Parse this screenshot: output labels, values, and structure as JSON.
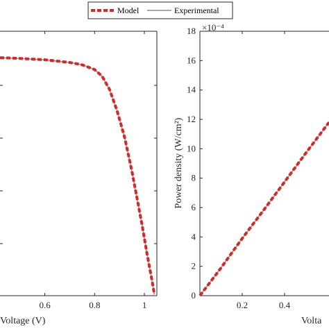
{
  "legend": {
    "model_label": "Model",
    "experimental_label": "Experimental",
    "model_color": "#d62728",
    "experimental_color": "#8c8c8c",
    "placement": "top-center"
  },
  "chart_data": [
    {
      "type": "line",
      "xlabel": "Voltage (V)",
      "ylabel": "",
      "xticks": [
        "0.6",
        "0.8",
        "1"
      ],
      "xlim": [
        0.42,
        1.05
      ],
      "ylim": [
        0,
        1
      ],
      "grid": false,
      "series": [
        {
          "name": "Model",
          "x": [
            0.42,
            0.5,
            0.6,
            0.7,
            0.75,
            0.8,
            0.83,
            0.86,
            0.89,
            0.92,
            0.95,
            0.97,
            0.99,
            1.01,
            1.03,
            1.04
          ],
          "y": [
            0.9,
            0.897,
            0.892,
            0.882,
            0.873,
            0.855,
            0.83,
            0.78,
            0.7,
            0.6,
            0.47,
            0.37,
            0.27,
            0.16,
            0.06,
            0.005
          ]
        },
        {
          "name": "Experimental",
          "x": [
            0.42,
            0.5,
            0.6,
            0.7,
            0.75,
            0.8,
            0.83,
            0.86,
            0.89,
            0.92,
            0.95,
            0.97,
            0.99,
            1.01,
            1.03,
            1.04
          ],
          "y": [
            0.9,
            0.897,
            0.892,
            0.882,
            0.873,
            0.855,
            0.83,
            0.78,
            0.7,
            0.6,
            0.47,
            0.37,
            0.27,
            0.16,
            0.06,
            0.005
          ]
        }
      ]
    },
    {
      "type": "line",
      "xlabel": "Volta",
      "ylabel": "Power density (W/cm²)",
      "y_multiplier": "×10⁻⁴",
      "yticks": [
        "0",
        "2",
        "4",
        "6",
        "8",
        "10",
        "12",
        "14",
        "16",
        "18"
      ],
      "xticks": [
        "0.2",
        "0.4"
      ],
      "xlim": [
        0,
        0.61
      ],
      "ylim": [
        0,
        18
      ],
      "grid": false,
      "series": [
        {
          "name": "Model",
          "x": [
            0,
            0.1,
            0.2,
            0.3,
            0.4,
            0.5,
            0.61
          ],
          "y": [
            0,
            1.9,
            3.9,
            5.8,
            7.75,
            9.7,
            11.8
          ]
        },
        {
          "name": "Experimental",
          "x": [
            0,
            0.1,
            0.2,
            0.3,
            0.4,
            0.5,
            0.61
          ],
          "y": [
            0,
            1.9,
            3.9,
            5.8,
            7.75,
            9.7,
            11.8
          ]
        }
      ]
    }
  ]
}
